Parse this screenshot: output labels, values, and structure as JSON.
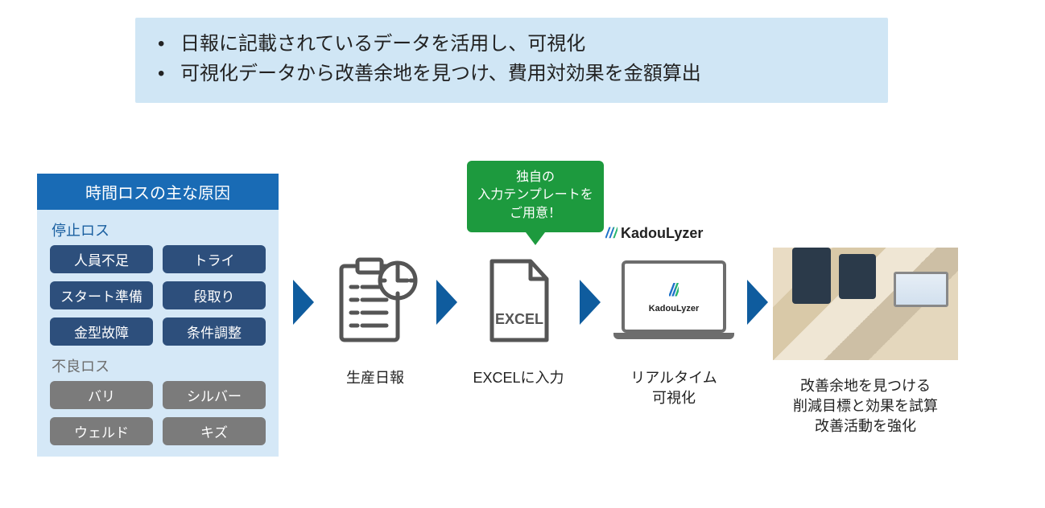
{
  "colors": {
    "header_bg": "#d0e6f5",
    "header_text": "#222222",
    "arrow": "#0f5c9e",
    "loss_card_bg": "#d5e8f7",
    "loss_title_bg": "#196bb5",
    "stop_label": "#1a5fa0",
    "stop_pill_bg": "#2d4f7c",
    "defect_label": "#6d6d6d",
    "defect_pill_bg": "#7b7b7b",
    "bubble_bg": "#1d9a3e",
    "icon_stroke": "#555555",
    "kl_blue": "#1e72c9",
    "kl_green": "#25b56e"
  },
  "header": {
    "bullets": [
      "日報に記載されているデータを活用し、可視化",
      "可視化データから改善余地を見つけ、費用対効果を金額算出"
    ]
  },
  "loss_card": {
    "title": "時間ロスの主な原因",
    "sections": [
      {
        "label": "停止ロス",
        "style": "stop",
        "items": [
          "人員不足",
          "トライ",
          "スタート準備",
          "段取り",
          "金型故障",
          "条件調整"
        ]
      },
      {
        "label": "不良ロス",
        "style": "defect",
        "items": [
          "バリ",
          "シルバー",
          "ウェルド",
          "キズ"
        ]
      }
    ]
  },
  "bubble": {
    "lines": [
      "独自の",
      "入力テンプレートを",
      "ご用意！"
    ]
  },
  "steps": {
    "report": {
      "caption": "生産日報"
    },
    "excel": {
      "caption": "EXCELに入力",
      "icon_label": "EXCEL"
    },
    "kadou": {
      "caption_lines": [
        "リアルタイム",
        "可視化"
      ],
      "brand": "KadouLyzer"
    },
    "improve": {
      "caption_lines": [
        "改善余地を見つける",
        "削減目標と効果を試算",
        "改善活動を強化"
      ]
    }
  }
}
